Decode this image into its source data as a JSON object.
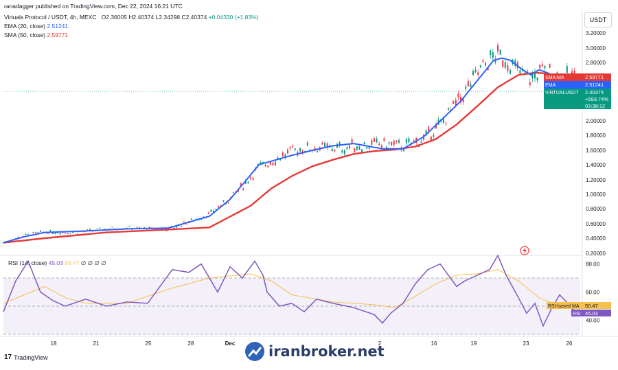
{
  "header": {
    "published": "ranadagger published on TradingView.com, Dec 22, 2024 16:21 UTC",
    "symbol": "Virtuals Protocol / USDT, 4h, MEXC",
    "ohlc": {
      "o_label": "O",
      "o": "2.36005",
      "h_label": "H",
      "h": "2.40374",
      "l_label": "L",
      "l": "2.34298",
      "c_label": "C",
      "c": "2.40374",
      "chg": "+0.04330 (+1.83%)"
    },
    "ema_label": "EMA (20, close)",
    "ema_value": "2.51241",
    "sma_label": "SMA (50, close)",
    "sma_value": "2.59771",
    "currency": "USDT"
  },
  "rsi_header": {
    "label": "RSI (14, close)",
    "rsi": "45.03",
    "ma": "50.47",
    "extra": "∅ ∅ ∅ ∅"
  },
  "price_tags": {
    "sma": {
      "label": "SMA:MA",
      "value": "2.59771"
    },
    "ema": {
      "label": "EMA",
      "value": "2.51241"
    },
    "last": {
      "label": "VIRTUALUSDT",
      "value": "2.40374",
      "pct": "+593.74%",
      "timer": "03:38:12"
    }
  },
  "rsi_tags": {
    "ma": {
      "label": "RSI-based MA",
      "value": "50.47"
    },
    "rsi": {
      "label": "RSI",
      "value": "45.03"
    }
  },
  "footer": {
    "brand": "TradingView",
    "watermark": "iranbroker.net"
  },
  "colors": {
    "up": "#089981",
    "down": "#f23645",
    "ema": "#2962ff",
    "sma": "#e53935",
    "rsi": "#7e57c2",
    "rsi_ma": "#f5c04c"
  },
  "chart_data": {
    "type": "line",
    "price_axis_ticks": [
      0.2,
      0.4,
      0.6,
      0.8,
      1.0,
      1.2,
      1.4,
      1.6,
      1.8,
      2.0,
      2.8,
      3.0,
      3.2
    ],
    "price_axis_labels": [
      "0.20000",
      "0.40000",
      "0.60000",
      "0.80000",
      "1.00000",
      "1.20000",
      "1.40000",
      "1.60000",
      "1.80000",
      "2.00000",
      "2.80000",
      "3.00000",
      "3.20000"
    ],
    "x_tick_labels": [
      "18",
      "21",
      "25",
      "28",
      "Dec",
      "2",
      "16",
      "19",
      "23",
      "26"
    ],
    "rsi_axis_labels": [
      "40.00",
      "60.00",
      "80.00"
    ],
    "rsi_band": [
      30,
      70
    ],
    "series": [
      {
        "name": "EMA (20, close)",
        "points": [
          [
            0,
            0.34
          ],
          [
            10,
            0.42
          ],
          [
            20,
            0.48
          ],
          [
            40,
            0.5
          ],
          [
            60,
            0.53
          ],
          [
            80,
            0.54
          ],
          [
            100,
            0.7
          ],
          [
            110,
            0.93
          ],
          [
            118,
            1.2
          ],
          [
            124,
            1.4
          ],
          [
            130,
            1.45
          ],
          [
            140,
            1.53
          ],
          [
            150,
            1.6
          ],
          [
            160,
            1.66
          ],
          [
            170,
            1.69
          ],
          [
            176,
            1.66
          ],
          [
            184,
            1.62
          ],
          [
            194,
            1.62
          ],
          [
            204,
            1.78
          ],
          [
            214,
            2.05
          ],
          [
            222,
            2.27
          ],
          [
            230,
            2.55
          ],
          [
            238,
            2.83
          ],
          [
            242,
            2.86
          ],
          [
            246,
            2.83
          ],
          [
            252,
            2.7
          ],
          [
            256,
            2.63
          ],
          [
            260,
            2.7
          ],
          [
            264,
            2.66
          ],
          [
            268,
            2.6
          ],
          [
            270,
            2.51
          ]
        ]
      },
      {
        "name": "SMA (50, close)",
        "points": [
          [
            0,
            0.34
          ],
          [
            20,
            0.4
          ],
          [
            50,
            0.48
          ],
          [
            80,
            0.52
          ],
          [
            100,
            0.55
          ],
          [
            120,
            0.84
          ],
          [
            130,
            1.08
          ],
          [
            140,
            1.25
          ],
          [
            150,
            1.38
          ],
          [
            160,
            1.47
          ],
          [
            170,
            1.55
          ],
          [
            180,
            1.59
          ],
          [
            190,
            1.61
          ],
          [
            200,
            1.65
          ],
          [
            210,
            1.75
          ],
          [
            220,
            1.95
          ],
          [
            230,
            2.2
          ],
          [
            240,
            2.46
          ],
          [
            250,
            2.63
          ],
          [
            258,
            2.66
          ],
          [
            264,
            2.65
          ],
          [
            270,
            2.6
          ]
        ]
      }
    ],
    "rsi_points": [
      [
        0,
        46
      ],
      [
        6,
        68
      ],
      [
        12,
        82
      ],
      [
        18,
        60
      ],
      [
        24,
        54
      ],
      [
        30,
        50
      ],
      [
        40,
        55
      ],
      [
        50,
        50
      ],
      [
        60,
        53
      ],
      [
        70,
        52
      ],
      [
        82,
        76
      ],
      [
        90,
        74
      ],
      [
        96,
        80
      ],
      [
        104,
        60
      ],
      [
        110,
        78
      ],
      [
        116,
        70
      ],
      [
        122,
        82
      ],
      [
        126,
        72
      ],
      [
        128,
        60
      ],
      [
        134,
        50
      ],
      [
        140,
        52
      ],
      [
        146,
        46
      ],
      [
        152,
        55
      ],
      [
        160,
        52
      ],
      [
        170,
        49
      ],
      [
        180,
        44
      ],
      [
        184,
        38
      ],
      [
        188,
        45
      ],
      [
        194,
        52
      ],
      [
        200,
        66
      ],
      [
        206,
        76
      ],
      [
        212,
        80
      ],
      [
        216,
        72
      ],
      [
        220,
        64
      ],
      [
        224,
        68
      ],
      [
        230,
        72
      ],
      [
        236,
        76
      ],
      [
        240,
        86
      ],
      [
        244,
        72
      ],
      [
        250,
        56
      ],
      [
        254,
        45
      ],
      [
        258,
        52
      ],
      [
        262,
        36
      ],
      [
        266,
        48
      ],
      [
        270,
        58
      ],
      [
        274,
        52
      ],
      [
        276,
        48
      ],
      [
        280,
        45
      ]
    ],
    "rsi_ma_points": [
      [
        0,
        52
      ],
      [
        10,
        58
      ],
      [
        20,
        64
      ],
      [
        30,
        56
      ],
      [
        40,
        52
      ],
      [
        60,
        52
      ],
      [
        80,
        62
      ],
      [
        100,
        70
      ],
      [
        120,
        73
      ],
      [
        130,
        68
      ],
      [
        140,
        58
      ],
      [
        160,
        53
      ],
      [
        180,
        51
      ],
      [
        190,
        49
      ],
      [
        200,
        57
      ],
      [
        210,
        66
      ],
      [
        220,
        72
      ],
      [
        230,
        73
      ],
      [
        240,
        76
      ],
      [
        250,
        68
      ],
      [
        260,
        56
      ],
      [
        270,
        50
      ],
      [
        280,
        50.5
      ]
    ]
  }
}
